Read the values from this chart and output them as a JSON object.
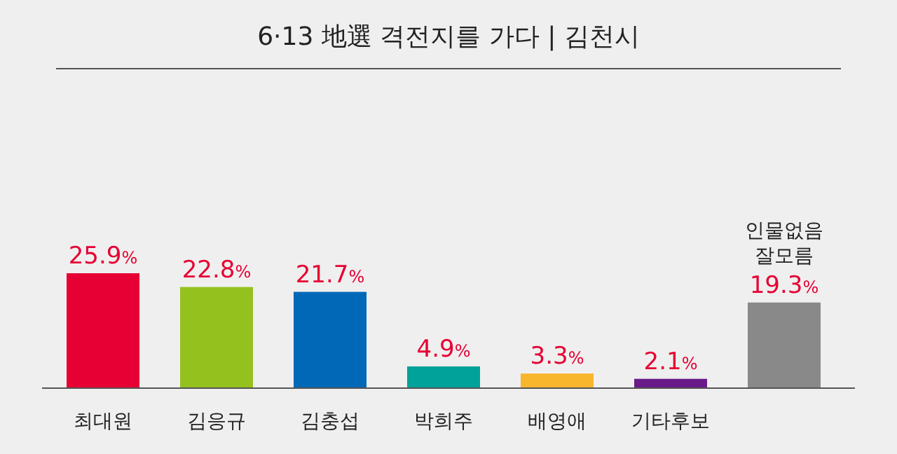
{
  "chart_data": {
    "type": "bar",
    "title": "6·13 地選 격전지를 가다  |  김천시",
    "categories": [
      "최대원",
      "김응규",
      "김충섭",
      "박희주",
      "배영애",
      "기타후보",
      "인물없음\n잘모름"
    ],
    "values": [
      25.9,
      22.8,
      21.7,
      4.9,
      3.3,
      2.1,
      19.3
    ],
    "colors": [
      "#e60033",
      "#95c11f",
      "#0068b7",
      "#00a29a",
      "#f8b62d",
      "#6a1b8a",
      "#898989"
    ],
    "value_labels": [
      "25.9%",
      "22.8%",
      "21.7%",
      "4.9%",
      "3.3%",
      "2.1%",
      "19.3%"
    ],
    "grid": false
  }
}
